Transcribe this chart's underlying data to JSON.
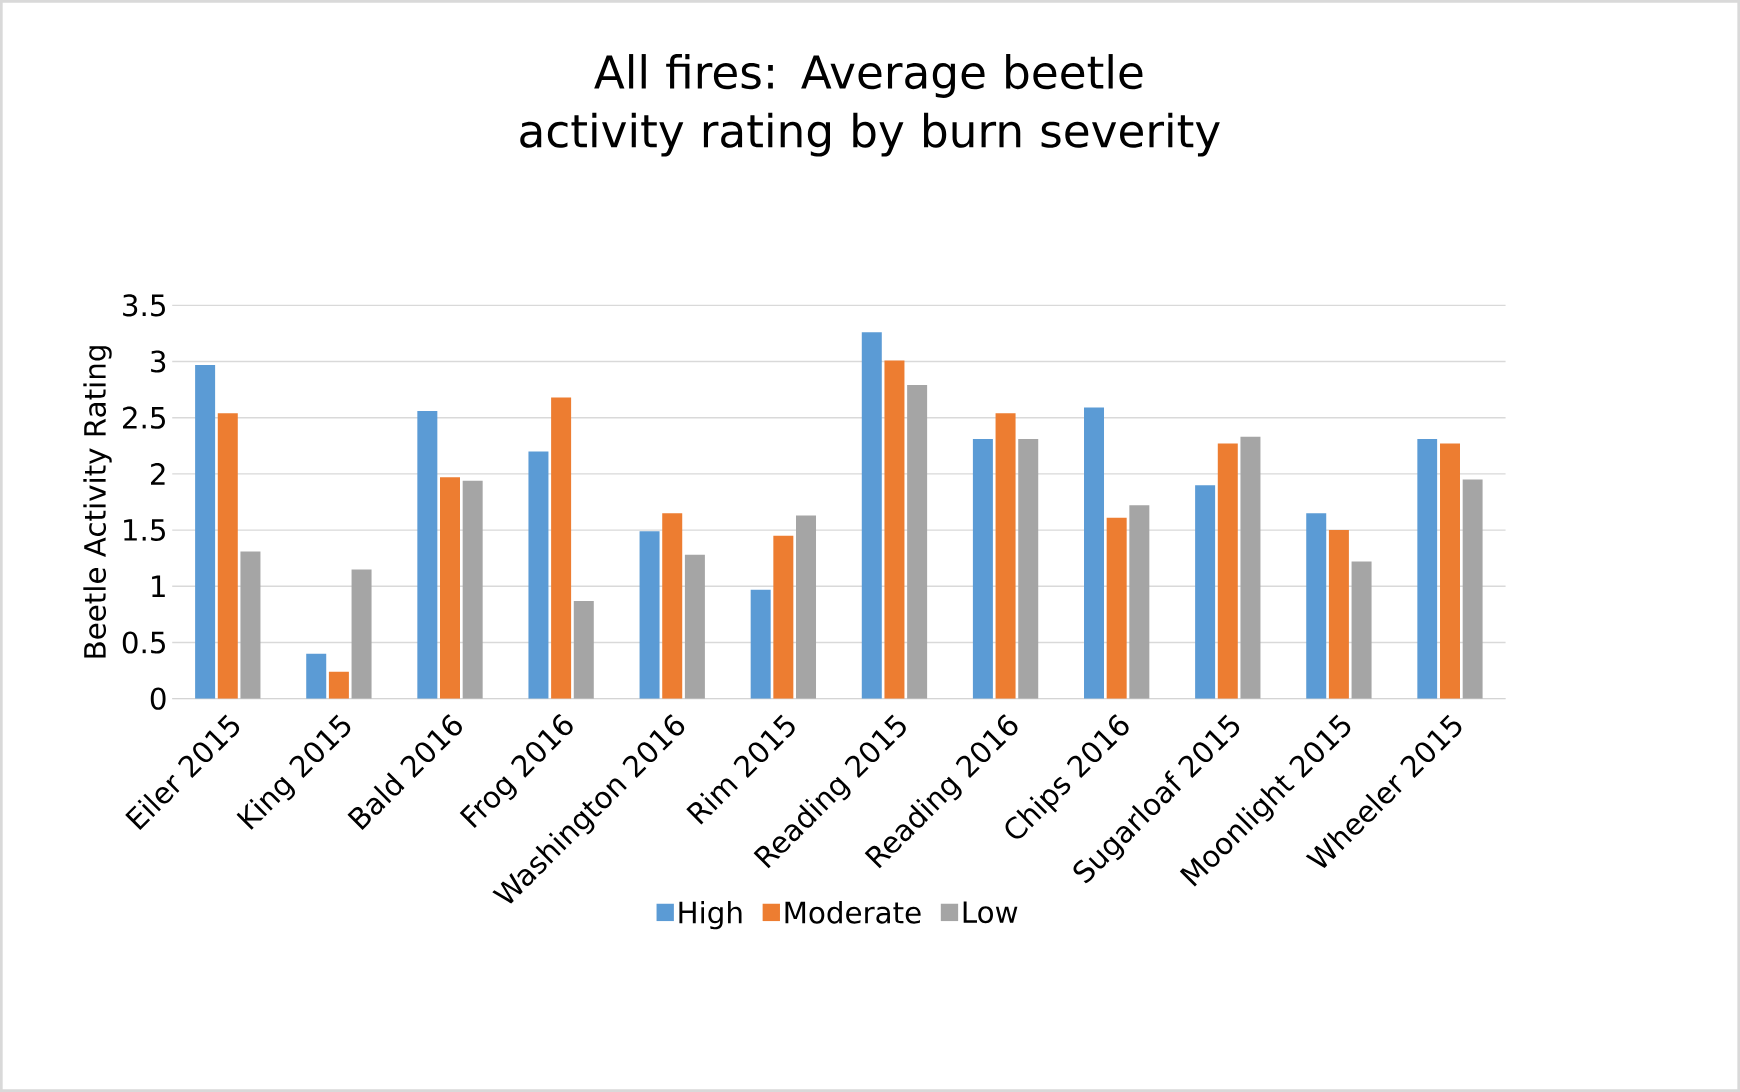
{
  "chart_data": {
    "type": "bar",
    "title": "All fires: Average beetle activity rating by burn severity",
    "ylabel": "Beetle Activity Rating",
    "categories": [
      "Eiler 2015",
      "King 2015",
      "Bald 2016",
      "Frog 2016",
      "Washington 2016",
      "Rim 2015",
      "Reading 2015",
      "Reading 2016",
      "Chips 2016",
      "Sugarloaf 2015",
      "Moonlight 2015",
      "Wheeler 2015"
    ],
    "series": [
      {
        "name": "High",
        "color": "#5b9bd5",
        "values": [
          2.97,
          0.4,
          2.56,
          2.2,
          1.49,
          0.97,
          3.26,
          2.31,
          2.59,
          1.9,
          1.65,
          2.31
        ]
      },
      {
        "name": "Moderate",
        "color": "#ed7d31",
        "values": [
          2.54,
          0.24,
          1.97,
          2.68,
          1.65,
          1.45,
          3.01,
          2.54,
          1.61,
          2.27,
          1.5,
          2.27
        ]
      },
      {
        "name": "Low",
        "color": "#a5a5a5",
        "values": [
          1.31,
          1.15,
          1.94,
          0.87,
          1.28,
          1.63,
          2.79,
          2.31,
          1.72,
          2.33,
          1.22,
          1.95
        ]
      }
    ],
    "ylim": [
      0,
      3.5
    ],
    "yticks": [
      0,
      0.5,
      1,
      1.5,
      2,
      2.5,
      3,
      3.5
    ],
    "grid": "y",
    "legend": "bottom"
  }
}
